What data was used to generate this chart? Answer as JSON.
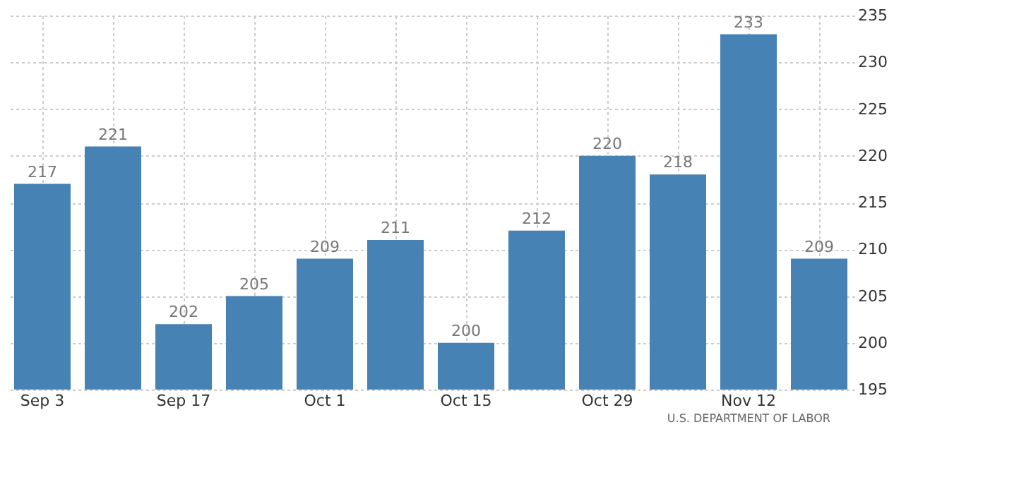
{
  "chart_data": {
    "type": "bar",
    "categories": [
      "Sep 3",
      null,
      "Sep 17",
      null,
      "Oct 1",
      null,
      "Oct 15",
      null,
      "Oct 29",
      null,
      "Nov 12",
      null
    ],
    "values": [
      217,
      221,
      202,
      205,
      209,
      211,
      200,
      212,
      220,
      218,
      233,
      209
    ],
    "color": "#4682b4",
    "data_labels": true,
    "ylim": [
      195,
      235
    ],
    "yticks": [
      195,
      200,
      205,
      210,
      215,
      220,
      225,
      230,
      235
    ],
    "grid": true,
    "annotations": [
      "U.S. DEPARTMENT OF LABOR"
    ]
  }
}
